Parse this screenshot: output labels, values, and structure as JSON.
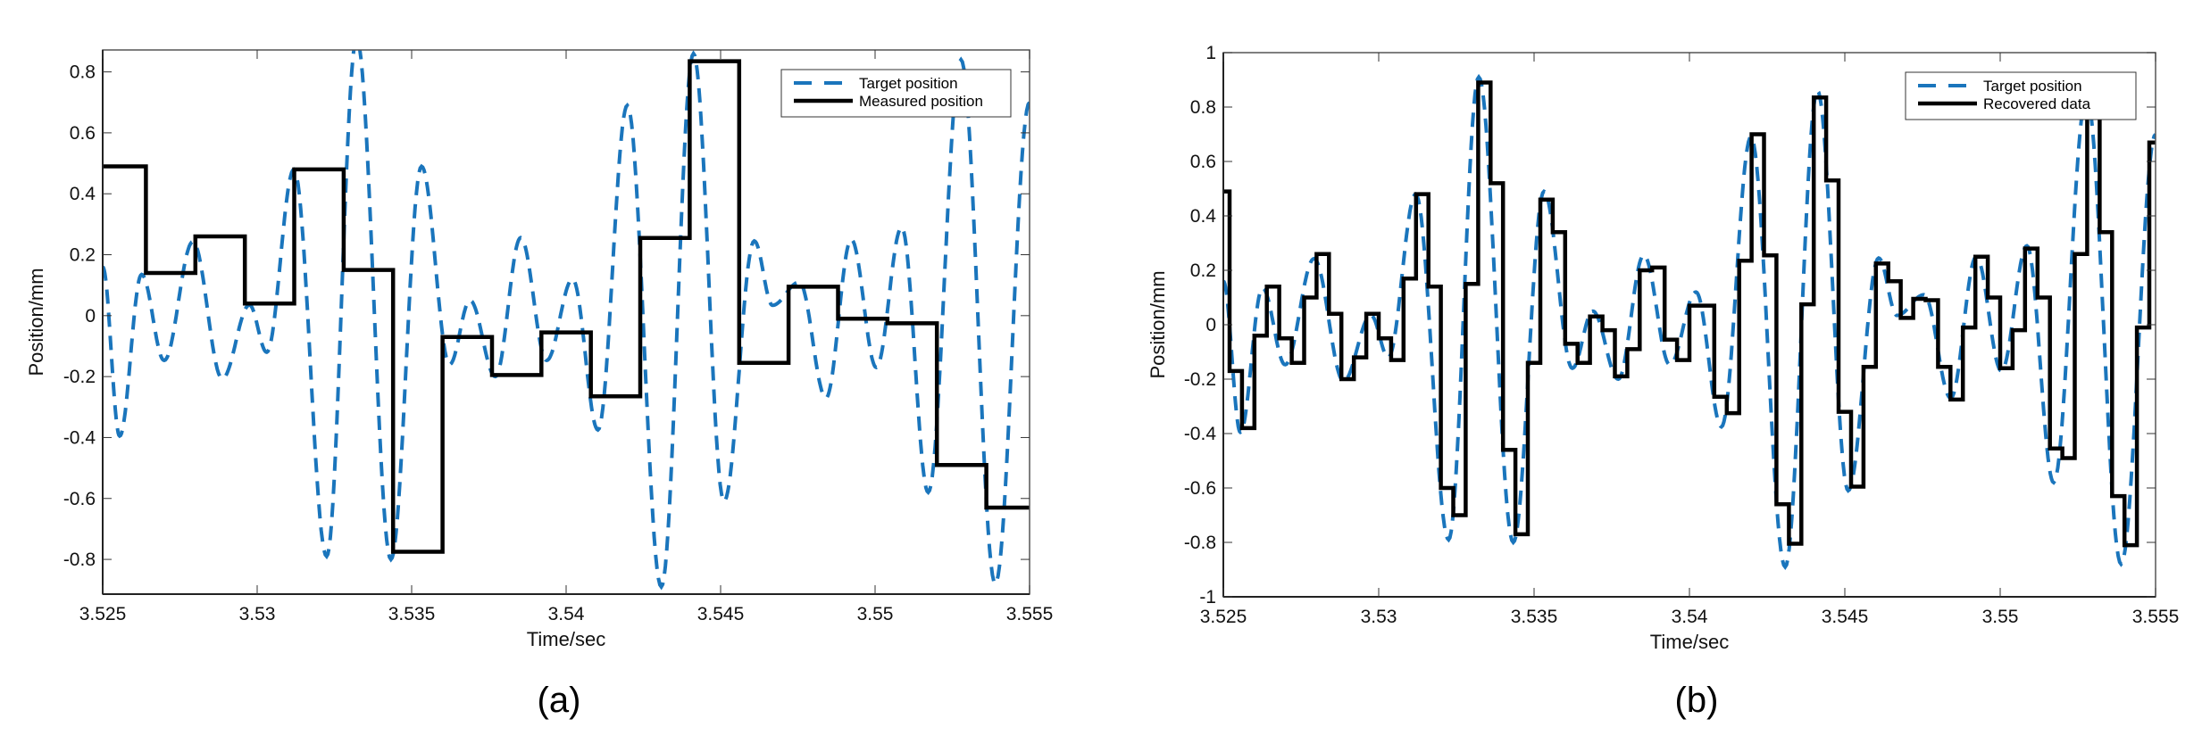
{
  "colors": {
    "target": "#1a75bc",
    "measured": "#000000",
    "axis": "#444444"
  },
  "chart_data": [
    {
      "type": "line",
      "panel_label": "(a)",
      "xlabel": "Time/sec",
      "ylabel": "Position/mm",
      "xlim": [
        3.525,
        3.555
      ],
      "ylim": [
        -0.914,
        0.872
      ],
      "xticks": [
        3.525,
        3.53,
        3.535,
        3.54,
        3.545,
        3.55,
        3.555
      ],
      "xtick_labels": [
        "3.525",
        "3.53",
        "3.535",
        "3.54",
        "3.545",
        "3.55",
        "3.555"
      ],
      "yticks": [
        -0.8,
        -0.6,
        -0.4,
        -0.2,
        0,
        0.2,
        0.4,
        0.6,
        0.8
      ],
      "ytick_labels": [
        "-0.8",
        "-0.6",
        "-0.4",
        "-0.2",
        "0",
        "0.2",
        "0.4",
        "0.6",
        "0.8"
      ],
      "grid": false,
      "legend_position": "top-right",
      "series": [
        {
          "name": "Target position",
          "style": "dashed",
          "color": "#1a75bc",
          "extrema_x": [
            3.525,
            3.52555,
            3.52626,
            3.52699,
            3.52792,
            3.52887,
            3.52975,
            3.53031,
            3.53119,
            3.53225,
            3.53322,
            3.53433,
            3.53532,
            3.53623,
            3.53689,
            3.53771,
            3.53853,
            3.53937,
            3.54021,
            3.54103,
            3.54198,
            3.54308,
            3.54412,
            3.54511,
            3.54609,
            3.54668,
            3.54755,
            3.54841,
            3.54923,
            3.55004,
            3.55086,
            3.55172,
            3.55278,
            3.55389,
            3.555
          ],
          "extrema_y": [
            0.16,
            -0.395,
            0.135,
            -0.147,
            0.243,
            -0.207,
            0.035,
            -0.12,
            0.48,
            -0.79,
            0.91,
            -0.8,
            0.49,
            -0.16,
            0.05,
            -0.2,
            0.256,
            -0.147,
            0.12,
            -0.375,
            0.69,
            -0.89,
            0.86,
            -0.61,
            0.245,
            0.034,
            0.11,
            -0.27,
            0.25,
            -0.17,
            0.29,
            -0.58,
            0.84,
            -0.88,
            0.7
          ]
        },
        {
          "name": "Measured position",
          "style": "step",
          "color": "#000000",
          "x": [
            3.525,
            3.5264,
            3.528,
            3.5296,
            3.5312,
            3.5328,
            3.5344,
            3.536,
            3.5376,
            3.5392,
            3.5408,
            3.5424,
            3.544,
            3.5456,
            3.5472,
            3.5488,
            3.5504,
            3.552,
            3.5536
          ],
          "y": [
            0.49,
            0.14,
            0.26,
            0.04,
            0.48,
            0.15,
            -0.775,
            -0.07,
            -0.195,
            -0.055,
            -0.265,
            0.255,
            0.835,
            -0.155,
            0.095,
            -0.01,
            -0.025,
            -0.49,
            -0.63
          ]
        }
      ]
    },
    {
      "type": "line",
      "panel_label": "(b)",
      "xlabel": "Time/sec",
      "ylabel": "Position/mm",
      "xlim": [
        3.525,
        3.555
      ],
      "ylim": [
        -1,
        1
      ],
      "xticks": [
        3.525,
        3.53,
        3.535,
        3.54,
        3.545,
        3.55,
        3.555
      ],
      "xtick_labels": [
        "3.525",
        "3.53",
        "3.535",
        "3.54",
        "3.545",
        "3.55",
        "3.555"
      ],
      "yticks": [
        -1,
        -0.8,
        -0.6,
        -0.4,
        -0.2,
        0,
        0.2,
        0.4,
        0.6,
        0.8,
        1
      ],
      "ytick_labels": [
        "-1",
        "-0.8",
        "-0.6",
        "-0.4",
        "-0.2",
        "0",
        "0.2",
        "0.4",
        "0.6",
        "0.8",
        "1"
      ],
      "grid": false,
      "legend_position": "top-right",
      "series": [
        {
          "name": "Target position",
          "style": "dashed",
          "color": "#1a75bc",
          "extrema_x": [
            3.525,
            3.52555,
            3.52626,
            3.52699,
            3.52792,
            3.52887,
            3.52975,
            3.53031,
            3.53119,
            3.53225,
            3.53322,
            3.53433,
            3.53532,
            3.53623,
            3.53689,
            3.53771,
            3.53853,
            3.53937,
            3.54021,
            3.54103,
            3.54198,
            3.54308,
            3.54412,
            3.54511,
            3.54609,
            3.54668,
            3.54755,
            3.54841,
            3.54923,
            3.55004,
            3.55086,
            3.55172,
            3.55278,
            3.55389,
            3.555
          ],
          "extrema_y": [
            0.16,
            -0.395,
            0.135,
            -0.147,
            0.243,
            -0.207,
            0.035,
            -0.12,
            0.48,
            -0.79,
            0.91,
            -0.8,
            0.49,
            -0.16,
            0.05,
            -0.2,
            0.256,
            -0.147,
            0.12,
            -0.375,
            0.69,
            -0.89,
            0.86,
            -0.61,
            0.245,
            0.034,
            0.11,
            -0.27,
            0.25,
            -0.17,
            0.29,
            -0.58,
            0.84,
            -0.88,
            0.7
          ]
        },
        {
          "name": "Recovered data",
          "style": "step",
          "color": "#000000",
          "x": [
            3.525,
            3.5252,
            3.5256,
            3.526,
            3.5264,
            3.5268,
            3.5272,
            3.5276,
            3.528,
            3.5284,
            3.5288,
            3.5292,
            3.5296,
            3.53,
            3.5304,
            3.5308,
            3.5312,
            3.5316,
            3.532,
            3.5324,
            3.5328,
            3.5332,
            3.5336,
            3.534,
            3.5344,
            3.5348,
            3.5352,
            3.5356,
            3.536,
            3.5364,
            3.5368,
            3.5372,
            3.5376,
            3.538,
            3.5384,
            3.5388,
            3.5392,
            3.5396,
            3.54,
            3.5404,
            3.5408,
            3.5412,
            3.5416,
            3.542,
            3.5424,
            3.5428,
            3.5432,
            3.5436,
            3.544,
            3.5444,
            3.5448,
            3.5452,
            3.5456,
            3.546,
            3.5464,
            3.5468,
            3.5472,
            3.5476,
            3.548,
            3.5484,
            3.5488,
            3.5492,
            3.5496,
            3.55,
            3.5504,
            3.5508,
            3.5512,
            3.5516,
            3.552,
            3.5524,
            3.5528,
            3.5532,
            3.5536,
            3.554,
            3.5544,
            3.5548
          ],
          "y": [
            0.49,
            -0.17,
            -0.38,
            -0.04,
            0.14,
            -0.05,
            -0.14,
            0.1,
            0.26,
            0.04,
            -0.2,
            -0.12,
            0.04,
            -0.05,
            -0.13,
            0.17,
            0.48,
            0.14,
            -0.6,
            -0.7,
            0.15,
            0.89,
            0.52,
            -0.46,
            -0.77,
            -0.14,
            0.46,
            0.34,
            -0.07,
            -0.14,
            0.03,
            -0.02,
            -0.19,
            -0.09,
            0.2,
            0.21,
            -0.055,
            -0.13,
            0.07,
            0.07,
            -0.265,
            -0.325,
            0.235,
            0.7,
            0.255,
            -0.66,
            -0.805,
            0.075,
            0.835,
            0.53,
            -0.32,
            -0.595,
            -0.155,
            0.225,
            0.16,
            0.025,
            0.095,
            0.09,
            -0.155,
            -0.275,
            -0.01,
            0.25,
            0.1,
            -0.16,
            -0.02,
            0.28,
            0.1,
            -0.455,
            -0.49,
            0.26,
            0.84,
            0.34,
            -0.63,
            -0.81,
            -0.01,
            0.67
          ]
        }
      ]
    }
  ]
}
